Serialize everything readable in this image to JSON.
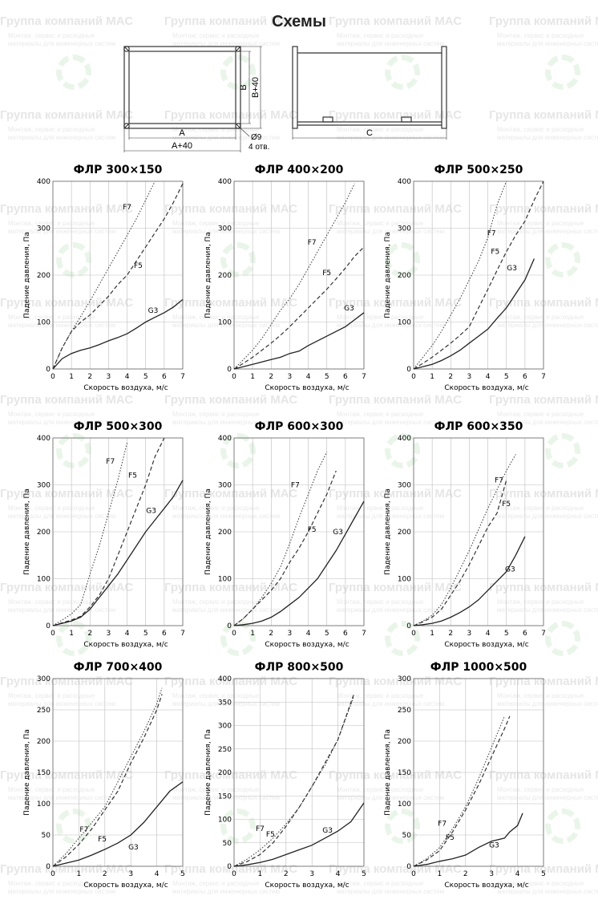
{
  "page_title": "Схемы",
  "watermark": {
    "title": "Группа компаний МАС",
    "line1": "Монтаж, сервис и расходные",
    "line2": "материалы для инженерных систем"
  },
  "scheme": {
    "label_A": "A",
    "label_A40": "A+40",
    "label_B": "B",
    "label_B40": "B+40",
    "label_C": "C",
    "label_hole": "Ø9",
    "label_holes": "4 отв."
  },
  "chart_data": [
    {
      "type": "line",
      "title": "ФЛР 300×150",
      "xlabel": "Скорость воздуха, м/с",
      "ylabel": "Падение давления, Па",
      "xlim": [
        0,
        7
      ],
      "ylim": [
        0,
        400
      ],
      "xticks": [
        0,
        1,
        2,
        3,
        4,
        5,
        6,
        7
      ],
      "yticks": [
        0,
        100,
        200,
        300,
        400
      ],
      "grid": true,
      "series": [
        {
          "name": "F7",
          "x": [
            0,
            0.5,
            1,
            1.5,
            2,
            2.5,
            3,
            3.5,
            4,
            4.5,
            5,
            5.5
          ],
          "y": [
            0,
            45,
            80,
            112,
            145,
            180,
            215,
            250,
            285,
            320,
            360,
            400
          ]
        },
        {
          "name": "F5",
          "x": [
            0,
            0.5,
            1,
            1.5,
            2,
            2.5,
            3,
            3.5,
            4,
            4.5,
            5,
            5.5,
            6,
            6.5,
            7
          ],
          "y": [
            0,
            45,
            80,
            100,
            115,
            135,
            155,
            180,
            200,
            230,
            260,
            290,
            320,
            355,
            395
          ]
        },
        {
          "name": "G3",
          "x": [
            0,
            0.5,
            1,
            1.5,
            2,
            2.5,
            3,
            3.5,
            4,
            4.5,
            5,
            5.5,
            6,
            6.5,
            7
          ],
          "y": [
            0,
            22,
            33,
            40,
            45,
            52,
            60,
            67,
            75,
            87,
            100,
            110,
            120,
            132,
            148
          ]
        }
      ]
    },
    {
      "type": "line",
      "title": "ФЛР 400×200",
      "xlabel": "Скорость воздуха, м/с",
      "ylabel": "Падение давления, Па",
      "xlim": [
        0,
        7
      ],
      "ylim": [
        0,
        400
      ],
      "xticks": [
        0,
        1,
        2,
        3,
        4,
        5,
        6,
        7
      ],
      "yticks": [
        0,
        100,
        200,
        300,
        400
      ],
      "grid": true,
      "series": [
        {
          "name": "F7",
          "x": [
            0,
            0.5,
            1,
            1.5,
            2,
            2.5,
            3,
            3.5,
            4,
            4.5,
            5,
            5.5,
            6,
            6.5
          ],
          "y": [
            0,
            20,
            40,
            65,
            95,
            125,
            150,
            180,
            215,
            250,
            285,
            320,
            355,
            395
          ]
        },
        {
          "name": "F5",
          "x": [
            0,
            0.5,
            1,
            1.5,
            2,
            2.5,
            3,
            3.5,
            4,
            4.5,
            5,
            5.5,
            6,
            6.5,
            7
          ],
          "y": [
            0,
            12,
            25,
            40,
            55,
            72,
            90,
            110,
            130,
            150,
            170,
            192,
            215,
            240,
            260
          ]
        },
        {
          "name": "G3",
          "x": [
            0,
            0.5,
            1,
            1.5,
            2,
            2.5,
            3,
            3.5,
            4,
            4.5,
            5,
            5.5,
            6,
            6.5,
            7
          ],
          "y": [
            0,
            5,
            10,
            15,
            20,
            25,
            33,
            38,
            50,
            60,
            70,
            80,
            90,
            105,
            120
          ]
        }
      ]
    },
    {
      "type": "line",
      "title": "ФЛР 500×250",
      "xlabel": "Скорость воздуха, м/с",
      "ylabel": "Падение давления, Па",
      "xlim": [
        0,
        7
      ],
      "ylim": [
        0,
        400
      ],
      "xticks": [
        0,
        1,
        2,
        3,
        4,
        5,
        6,
        7
      ],
      "yticks": [
        0,
        100,
        200,
        300,
        400
      ],
      "grid": true,
      "series": [
        {
          "name": "F7",
          "x": [
            0,
            0.5,
            1,
            1.5,
            2,
            2.5,
            3,
            3.5,
            4,
            4.5,
            5
          ],
          "y": [
            0,
            25,
            50,
            80,
            115,
            150,
            190,
            230,
            280,
            350,
            400
          ]
        },
        {
          "name": "F5",
          "x": [
            0,
            0.5,
            1,
            1.5,
            2,
            2.5,
            3,
            3.5,
            4,
            4.5,
            5,
            5.5,
            6,
            6.5,
            7
          ],
          "y": [
            0,
            12,
            25,
            40,
            55,
            72,
            90,
            130,
            170,
            210,
            250,
            285,
            315,
            360,
            400
          ]
        },
        {
          "name": "G3",
          "x": [
            0,
            0.5,
            1,
            1.5,
            2,
            2.5,
            3,
            3.5,
            4,
            4.5,
            5,
            5.5,
            6,
            6.5
          ],
          "y": [
            0,
            5,
            10,
            18,
            28,
            40,
            55,
            70,
            85,
            108,
            130,
            160,
            190,
            235
          ]
        }
      ]
    },
    {
      "type": "line",
      "title": "ФЛР 500×300",
      "xlabel": "Скорость воздуха, м/с",
      "ylabel": "Падение давления, Па",
      "xlim": [
        0,
        7
      ],
      "ylim": [
        0,
        400
      ],
      "xticks": [
        0,
        1,
        2,
        3,
        4,
        5,
        6,
        7
      ],
      "yticks": [
        0,
        100,
        200,
        300,
        400
      ],
      "grid": true,
      "series": [
        {
          "name": "F7",
          "x": [
            0,
            0.5,
            1,
            1.5,
            2,
            2.5,
            3,
            3.5,
            4
          ],
          "y": [
            0,
            12,
            25,
            45,
            110,
            170,
            240,
            310,
            390
          ]
        },
        {
          "name": "F5",
          "x": [
            0,
            0.5,
            1,
            1.5,
            2,
            2.5,
            3,
            3.5,
            4,
            4.5,
            5,
            5.5,
            6
          ],
          "y": [
            0,
            6,
            12,
            20,
            40,
            65,
            100,
            150,
            200,
            250,
            300,
            360,
            400
          ]
        },
        {
          "name": "G3",
          "x": [
            0,
            0.5,
            1,
            1.5,
            2,
            2.5,
            3,
            3.5,
            4,
            4.5,
            5,
            5.5,
            6,
            6.5,
            7
          ],
          "y": [
            0,
            5,
            10,
            18,
            35,
            60,
            85,
            110,
            140,
            170,
            200,
            225,
            250,
            275,
            310
          ]
        }
      ]
    },
    {
      "type": "line",
      "title": "ФЛР 600×300",
      "xlabel": "Скорость воздуха, м/с",
      "ylabel": "Падение давления, Па",
      "xlim": [
        0,
        7
      ],
      "ylim": [
        0,
        400
      ],
      "xticks": [
        0,
        1,
        2,
        3,
        4,
        5,
        6,
        7
      ],
      "yticks": [
        0,
        100,
        200,
        300,
        400
      ],
      "grid": true,
      "series": [
        {
          "name": "F7",
          "x": [
            0,
            0.5,
            1,
            1.5,
            2,
            2.5,
            3,
            3.5,
            4,
            4.5,
            5
          ],
          "y": [
            0,
            15,
            35,
            60,
            90,
            125,
            175,
            230,
            280,
            330,
            370
          ]
        },
        {
          "name": "F5",
          "x": [
            0,
            0.5,
            1,
            1.5,
            2,
            2.5,
            3,
            3.5,
            4,
            4.5,
            5,
            5.5
          ],
          "y": [
            0,
            15,
            35,
            55,
            75,
            100,
            135,
            165,
            200,
            240,
            280,
            330
          ]
        },
        {
          "name": "G3",
          "x": [
            0,
            0.5,
            1,
            1.5,
            2,
            2.5,
            3,
            3.5,
            4,
            4.5,
            5,
            5.5,
            6,
            6.5,
            7
          ],
          "y": [
            0,
            2,
            5,
            10,
            18,
            30,
            45,
            60,
            80,
            100,
            130,
            160,
            195,
            230,
            265
          ]
        }
      ]
    },
    {
      "type": "line",
      "title": "ФЛР 600×350",
      "xlabel": "Скорость воздуха, м/с",
      "ylabel": "Падение давления, Па",
      "xlim": [
        0,
        7
      ],
      "ylim": [
        0,
        400
      ],
      "xticks": [
        0,
        1,
        2,
        3,
        4,
        5,
        6,
        7
      ],
      "yticks": [
        0,
        100,
        200,
        300,
        400
      ],
      "grid": true,
      "series": [
        {
          "name": "F7",
          "x": [
            0,
            0.5,
            1,
            1.5,
            2,
            2.5,
            3,
            3.5,
            4,
            4.5,
            5,
            5.5
          ],
          "y": [
            0,
            10,
            22,
            45,
            80,
            120,
            160,
            205,
            250,
            290,
            330,
            365
          ]
        },
        {
          "name": "F5",
          "x": [
            0,
            0.5,
            1,
            1.5,
            2,
            2.5,
            3,
            3.5,
            4,
            4.5,
            5
          ],
          "y": [
            0,
            8,
            18,
            35,
            65,
            95,
            130,
            170,
            210,
            240,
            310
          ]
        },
        {
          "name": "G3",
          "x": [
            0,
            0.5,
            1,
            1.5,
            2,
            2.5,
            3,
            3.5,
            4,
            4.5,
            5,
            5.5,
            6
          ],
          "y": [
            0,
            2,
            5,
            10,
            18,
            28,
            40,
            55,
            75,
            95,
            115,
            150,
            190
          ]
        }
      ]
    },
    {
      "type": "line",
      "title": "ФЛР 700×400",
      "xlabel": "Скорость воздуха, м/с",
      "ylabel": "Падение давления, Па",
      "xlim": [
        0,
        5
      ],
      "ylim": [
        0,
        300
      ],
      "xticks": [
        0,
        1,
        2,
        3,
        4,
        5
      ],
      "yticks": [
        0,
        50,
        100,
        150,
        200,
        250,
        300
      ],
      "grid": true,
      "series": [
        {
          "name": "F7",
          "x": [
            0,
            0.5,
            1,
            1.5,
            2,
            2.5,
            3,
            3.5,
            4,
            4.2
          ],
          "y": [
            0,
            20,
            45,
            70,
            95,
            135,
            175,
            215,
            260,
            285
          ]
        },
        {
          "name": "F5",
          "x": [
            0,
            0.5,
            1,
            1.5,
            2,
            2.5,
            3,
            3.5,
            4,
            4.2
          ],
          "y": [
            0,
            15,
            35,
            60,
            90,
            120,
            165,
            205,
            250,
            275
          ]
        },
        {
          "name": "G3",
          "x": [
            0,
            0.5,
            1,
            1.5,
            2,
            2.5,
            3,
            3.5,
            4,
            4.5,
            5
          ],
          "y": [
            0,
            5,
            10,
            18,
            27,
            37,
            50,
            70,
            95,
            120,
            135
          ]
        }
      ]
    },
    {
      "type": "line",
      "title": "ФЛР 800×500",
      "xlabel": "Скорость воздуха, м/с",
      "ylabel": "Падение давления, Па",
      "xlim": [
        0,
        5
      ],
      "ylim": [
        0,
        400
      ],
      "xticks": [
        0,
        1,
        2,
        3,
        4,
        5
      ],
      "yticks": [
        0,
        50,
        100,
        150,
        200,
        250,
        300,
        350,
        400
      ],
      "grid": true,
      "series": [
        {
          "name": "F7",
          "x": [
            0,
            0.5,
            1,
            1.5,
            2,
            2.5,
            3,
            3.5,
            4,
            4.6
          ],
          "y": [
            0,
            15,
            35,
            60,
            90,
            125,
            170,
            215,
            270,
            360
          ]
        },
        {
          "name": "F5",
          "x": [
            0,
            0.5,
            1,
            1.5,
            2,
            2.5,
            3,
            3.5,
            4,
            4.6
          ],
          "y": [
            0,
            10,
            25,
            50,
            85,
            125,
            170,
            220,
            270,
            365
          ]
        },
        {
          "name": "G3",
          "x": [
            0,
            0.5,
            1,
            1.5,
            2,
            2.5,
            3,
            3.5,
            4,
            4.5,
            5
          ],
          "y": [
            0,
            3,
            8,
            15,
            25,
            35,
            45,
            60,
            75,
            95,
            135
          ]
        }
      ]
    },
    {
      "type": "line",
      "title": "ФЛР 1000×500",
      "xlabel": "Скорость воздуха, м/с",
      "ylabel": "Падение давления, Па",
      "xlim": [
        0,
        5
      ],
      "ylim": [
        0,
        300
      ],
      "xticks": [
        0,
        1,
        2,
        3,
        4,
        5
      ],
      "yticks": [
        0,
        50,
        100,
        150,
        200,
        250,
        300
      ],
      "grid": true,
      "series": [
        {
          "name": "F7",
          "x": [
            0,
            0.5,
            1,
            1.5,
            2,
            2.5,
            3,
            3.5
          ],
          "y": [
            0,
            12,
            30,
            60,
            95,
            140,
            190,
            240
          ]
        },
        {
          "name": "F5",
          "x": [
            0,
            0.5,
            1,
            1.5,
            2,
            2.5,
            3,
            3.5,
            3.7
          ],
          "y": [
            0,
            10,
            25,
            55,
            90,
            130,
            175,
            220,
            240
          ]
        },
        {
          "name": "G3",
          "x": [
            0,
            0.5,
            1,
            1.5,
            2,
            2.5,
            3,
            3.5,
            3.7,
            4,
            4.2
          ],
          "y": [
            0,
            3,
            8,
            12,
            18,
            30,
            40,
            45,
            55,
            65,
            85
          ]
        }
      ]
    }
  ]
}
